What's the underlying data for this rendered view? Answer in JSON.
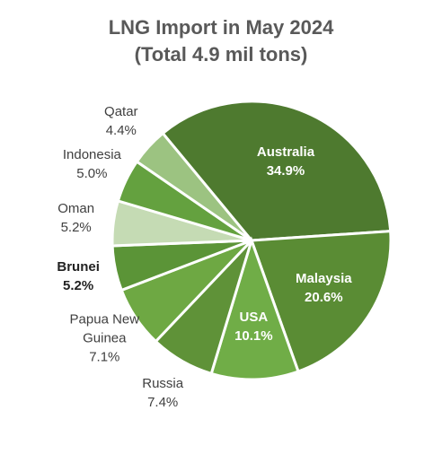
{
  "chart_data": {
    "type": "pie",
    "title": "LNG Import in May 2024",
    "subtitle": "(Total 4.9 mil tons)",
    "categories": [
      "Australia",
      "Malaysia",
      "USA",
      "Russia",
      "Papua New Guinea",
      "Brunei",
      "Oman",
      "Indonesia",
      "Qatar"
    ],
    "values": [
      34.9,
      20.6,
      10.1,
      7.4,
      7.1,
      5.2,
      5.2,
      5.0,
      4.4
    ],
    "value_labels": [
      "34.9%",
      "20.6%",
      "10.1%",
      "7.4%",
      "7.1%",
      "5.2%",
      "5.2%",
      "5.0%",
      "4.4%"
    ],
    "colors": [
      "#4e7a2f",
      "#5a8c34",
      "#70ad47",
      "#5f9238",
      "#6ea843",
      "#5b9437",
      "#c5dbb4",
      "#64a13f",
      "#9cc381"
    ],
    "labels_inside": [
      true,
      true,
      true,
      false,
      false,
      false,
      false,
      false,
      false
    ],
    "bold": [
      false,
      false,
      false,
      false,
      false,
      true,
      false,
      false,
      false
    ]
  }
}
